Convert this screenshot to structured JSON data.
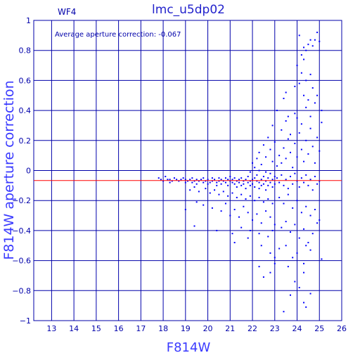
{
  "chart_data": {
    "type": "scatter",
    "title": "lmc_u5dp02",
    "panel_label": "WF4",
    "annotation": "Average aperture correction: -0.067",
    "xlabel": "F814W",
    "ylabel": "F814W aperture correction",
    "xlim": [
      12.2,
      26
    ],
    "ylim": [
      -1,
      1
    ],
    "x_ticks": [
      13,
      14,
      15,
      16,
      17,
      18,
      19,
      20,
      21,
      22,
      23,
      24,
      25,
      26
    ],
    "y_ticks": [
      -1,
      -0.8,
      -0.6,
      -0.4,
      -0.2,
      0,
      0.2,
      0.4,
      0.6,
      0.8,
      1
    ],
    "grid": true,
    "average_line": -0.067,
    "colors": {
      "axes": "#0000aa",
      "points": "#0000ff",
      "average_line": "#ff0000",
      "labels": "#3a3aff"
    },
    "points": [
      [
        17.8,
        -0.05
      ],
      [
        17.9,
        -0.06
      ],
      [
        18.0,
        -0.07
      ],
      [
        18.1,
        -0.04
      ],
      [
        18.2,
        -0.06
      ],
      [
        18.3,
        -0.08
      ],
      [
        18.3,
        -0.06
      ],
      [
        18.4,
        -0.07
      ],
      [
        18.5,
        -0.05
      ],
      [
        18.6,
        -0.06
      ],
      [
        18.7,
        -0.07
      ],
      [
        18.8,
        -0.06
      ],
      [
        18.9,
        -0.05
      ],
      [
        19.0,
        -0.06
      ],
      [
        19.0,
        -0.08
      ],
      [
        19.1,
        -0.07
      ],
      [
        19.2,
        -0.06
      ],
      [
        19.3,
        -0.05
      ],
      [
        19.3,
        -0.08
      ],
      [
        19.4,
        -0.07
      ],
      [
        19.5,
        -0.06
      ],
      [
        19.5,
        -0.09
      ],
      [
        19.6,
        -0.07
      ],
      [
        19.7,
        -0.06
      ],
      [
        19.8,
        -0.08
      ],
      [
        19.8,
        -0.05
      ],
      [
        19.9,
        -0.07
      ],
      [
        20.0,
        -0.06
      ],
      [
        20.0,
        -0.09
      ],
      [
        20.1,
        -0.08
      ],
      [
        20.2,
        -0.07
      ],
      [
        20.2,
        -0.05
      ],
      [
        20.3,
        -0.06
      ],
      [
        20.4,
        -0.08
      ],
      [
        20.4,
        -0.1
      ],
      [
        20.5,
        -0.07
      ],
      [
        20.5,
        -0.05
      ],
      [
        20.6,
        -0.06
      ],
      [
        20.6,
        -0.09
      ],
      [
        20.7,
        -0.07
      ],
      [
        20.8,
        -0.08
      ],
      [
        20.8,
        -0.05
      ],
      [
        20.9,
        -0.06
      ],
      [
        20.9,
        -0.1
      ],
      [
        21.0,
        -0.07
      ],
      [
        21.0,
        -0.04
      ],
      [
        21.1,
        -0.08
      ],
      [
        21.1,
        -0.06
      ],
      [
        21.2,
        -0.09
      ],
      [
        21.2,
        -0.05
      ],
      [
        21.3,
        -0.07
      ],
      [
        21.3,
        -0.11
      ],
      [
        21.4,
        -0.06
      ],
      [
        21.4,
        -0.08
      ],
      [
        21.5,
        -0.05
      ],
      [
        21.5,
        -0.1
      ],
      [
        21.6,
        -0.07
      ],
      [
        21.6,
        -0.09
      ],
      [
        21.7,
        -0.06
      ],
      [
        21.7,
        -0.12
      ],
      [
        21.8,
        -0.08
      ],
      [
        21.8,
        -0.04
      ],
      [
        21.9,
        -0.07
      ],
      [
        21.9,
        -0.1
      ],
      [
        22.0,
        -0.06
      ],
      [
        22.0,
        -0.09
      ],
      [
        22.1,
        -0.05
      ],
      [
        22.1,
        -0.11
      ],
      [
        22.2,
        -0.07
      ],
      [
        22.2,
        -0.03
      ],
      [
        22.3,
        -0.08
      ],
      [
        22.3,
        -0.12
      ],
      [
        22.4,
        -0.06
      ],
      [
        22.4,
        -0.1
      ],
      [
        22.5,
        -0.04
      ],
      [
        22.5,
        -0.09
      ],
      [
        22.6,
        -0.07
      ],
      [
        22.6,
        -0.13
      ],
      [
        22.7,
        -0.05
      ],
      [
        22.7,
        -0.1
      ],
      [
        22.8,
        -0.08
      ],
      [
        22.8,
        -0.02
      ],
      [
        22.9,
        -0.11
      ],
      [
        22.9,
        -0.06
      ],
      [
        23.0,
        -0.09
      ],
      [
        23.0,
        -0.04
      ],
      [
        19.2,
        -0.13
      ],
      [
        19.4,
        -0.11
      ],
      [
        19.6,
        -0.14
      ],
      [
        19.9,
        -0.12
      ],
      [
        20.1,
        -0.15
      ],
      [
        20.3,
        -0.13
      ],
      [
        20.5,
        -0.16
      ],
      [
        20.7,
        -0.14
      ],
      [
        20.9,
        -0.17
      ],
      [
        21.1,
        -0.15
      ],
      [
        21.3,
        -0.18
      ],
      [
        21.5,
        -0.16
      ],
      [
        21.7,
        -0.19
      ],
      [
        21.9,
        -0.17
      ],
      [
        22.1,
        -0.2
      ],
      [
        22.3,
        -0.18
      ],
      [
        22.5,
        -0.21
      ],
      [
        22.7,
        -0.19
      ],
      [
        22.9,
        -0.22
      ],
      [
        19.0,
        -0.26
      ],
      [
        19.5,
        -0.21
      ],
      [
        19.8,
        -0.23
      ],
      [
        20.2,
        -0.25
      ],
      [
        20.6,
        -0.27
      ],
      [
        20.8,
        -0.22
      ],
      [
        21.0,
        -0.3
      ],
      [
        21.2,
        -0.26
      ],
      [
        21.4,
        -0.31
      ],
      [
        21.6,
        -0.24
      ],
      [
        21.8,
        -0.28
      ],
      [
        22.0,
        -0.33
      ],
      [
        22.2,
        -0.29
      ],
      [
        22.4,
        -0.35
      ],
      [
        22.6,
        -0.27
      ],
      [
        22.8,
        -0.31
      ],
      [
        23.0,
        -0.36
      ],
      [
        19.4,
        -0.37
      ],
      [
        20.4,
        -0.4
      ],
      [
        21.1,
        -0.42
      ],
      [
        21.5,
        -0.38
      ],
      [
        21.9,
        -0.4
      ],
      [
        22.3,
        -0.42
      ],
      [
        22.7,
        -0.44
      ],
      [
        22.9,
        -0.4
      ],
      [
        21.2,
        -0.48
      ],
      [
        21.8,
        -0.45
      ],
      [
        22.4,
        -0.5
      ],
      [
        22.8,
        -0.55
      ],
      [
        23.0,
        -0.58
      ],
      [
        23.0,
        -0.62
      ],
      [
        22.3,
        -0.64
      ],
      [
        22.5,
        -0.71
      ],
      [
        22.8,
        -0.68
      ],
      [
        22.0,
        0.05
      ],
      [
        22.1,
        0.02
      ],
      [
        22.2,
        0.08
      ],
      [
        22.3,
        0.12
      ],
      [
        22.4,
        0.04
      ],
      [
        22.5,
        0.17
      ],
      [
        22.6,
        0.09
      ],
      [
        22.7,
        0.22
      ],
      [
        22.8,
        0.14
      ],
      [
        22.9,
        0.06
      ],
      [
        22.9,
        0.3
      ],
      [
        23.0,
        0.19
      ],
      [
        22.6,
        -0.01
      ],
      [
        22.3,
        0.0
      ],
      [
        21.9,
        -0.01
      ],
      [
        23.1,
        -0.05
      ],
      [
        23.2,
        -0.08
      ],
      [
        23.3,
        -0.03
      ],
      [
        23.4,
        -0.1
      ],
      [
        23.5,
        -0.06
      ],
      [
        23.6,
        -0.12
      ],
      [
        23.7,
        -0.04
      ],
      [
        23.8,
        -0.09
      ],
      [
        23.9,
        -0.02
      ],
      [
        24.0,
        -0.07
      ],
      [
        24.1,
        -0.11
      ],
      [
        24.2,
        -0.05
      ],
      [
        24.3,
        -0.08
      ],
      [
        24.4,
        -0.03
      ],
      [
        24.5,
        -0.1
      ],
      [
        24.6,
        -0.06
      ],
      [
        24.7,
        -0.13
      ],
      [
        24.8,
        -0.04
      ],
      [
        24.9,
        -0.09
      ],
      [
        25.0,
        -0.07
      ],
      [
        23.2,
        -0.18
      ],
      [
        23.4,
        -0.22
      ],
      [
        23.6,
        -0.16
      ],
      [
        23.8,
        -0.25
      ],
      [
        24.0,
        -0.2
      ],
      [
        24.2,
        -0.28
      ],
      [
        24.4,
        -0.24
      ],
      [
        24.6,
        -0.3
      ],
      [
        24.8,
        -0.26
      ],
      [
        25.0,
        -0.33
      ],
      [
        23.3,
        -0.38
      ],
      [
        23.5,
        -0.34
      ],
      [
        23.7,
        -0.41
      ],
      [
        23.9,
        -0.36
      ],
      [
        24.1,
        -0.45
      ],
      [
        24.3,
        -0.39
      ],
      [
        24.5,
        -0.48
      ],
      [
        24.7,
        -0.42
      ],
      [
        24.9,
        -0.35
      ],
      [
        23.2,
        -0.52
      ],
      [
        23.5,
        -0.5
      ],
      [
        23.8,
        -0.58
      ],
      [
        24.0,
        -0.55
      ],
      [
        24.3,
        -0.62
      ],
      [
        24.4,
        -0.5
      ],
      [
        24.6,
        -0.53
      ],
      [
        25.1,
        -0.59
      ],
      [
        23.6,
        -0.64
      ],
      [
        23.9,
        -0.74
      ],
      [
        24.1,
        -0.78
      ],
      [
        24.3,
        -0.68
      ],
      [
        24.6,
        -0.82
      ],
      [
        24.3,
        -0.88
      ],
      [
        23.4,
        -0.94
      ],
      [
        24.4,
        -0.91
      ],
      [
        23.7,
        -0.83
      ],
      [
        23.1,
        0.03
      ],
      [
        23.2,
        0.1
      ],
      [
        23.3,
        0.05
      ],
      [
        23.4,
        0.15
      ],
      [
        23.5,
        0.08
      ],
      [
        23.6,
        0.21
      ],
      [
        23.7,
        0.12
      ],
      [
        23.8,
        0.02
      ],
      [
        23.9,
        0.18
      ],
      [
        24.0,
        0.09
      ],
      [
        24.1,
        0.25
      ],
      [
        24.2,
        0.14
      ],
      [
        24.3,
        0.06
      ],
      [
        24.4,
        0.2
      ],
      [
        24.5,
        0.11
      ],
      [
        24.6,
        0.28
      ],
      [
        24.7,
        0.16
      ],
      [
        24.8,
        0.05
      ],
      [
        24.9,
        0.22
      ],
      [
        25.0,
        0.13
      ],
      [
        23.3,
        0.27
      ],
      [
        23.5,
        0.33
      ],
      [
        23.7,
        0.24
      ],
      [
        23.9,
        0.38
      ],
      [
        24.2,
        0.31
      ],
      [
        24.4,
        0.42
      ],
      [
        24.6,
        0.36
      ],
      [
        24.8,
        0.45
      ],
      [
        25.1,
        0.4
      ],
      [
        25.1,
        0.32
      ],
      [
        23.1,
        0.4
      ],
      [
        23.4,
        0.48
      ],
      [
        23.6,
        0.36
      ],
      [
        24.0,
        0.35
      ],
      [
        24.3,
        0.5
      ],
      [
        24.5,
        0.47
      ],
      [
        24.7,
        0.55
      ],
      [
        24.9,
        0.5
      ],
      [
        23.5,
        0.52
      ],
      [
        23.9,
        0.56
      ],
      [
        24.1,
        0.58
      ],
      [
        24.4,
        0.6
      ],
      [
        24.6,
        0.64
      ],
      [
        24.2,
        0.65
      ],
      [
        24.0,
        0.7
      ],
      [
        24.3,
        0.74
      ],
      [
        24.2,
        0.77
      ],
      [
        24.4,
        0.8
      ],
      [
        24.5,
        0.84
      ],
      [
        24.7,
        0.83
      ],
      [
        24.8,
        0.87
      ],
      [
        24.1,
        0.9
      ],
      [
        24.6,
        0.87
      ],
      [
        25.0,
        0.86
      ],
      [
        24.9,
        0.92
      ],
      [
        24.3,
        0.82
      ]
    ]
  }
}
